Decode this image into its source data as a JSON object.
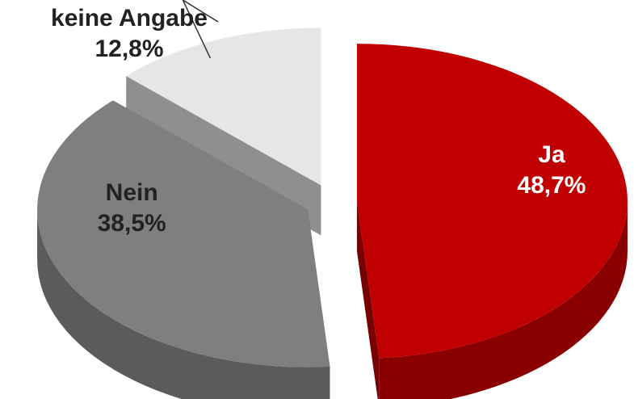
{
  "chart_data": {
    "type": "pie",
    "categories": [
      "Ja",
      "Nein",
      "keine Angabe"
    ],
    "values": [
      48.7,
      38.5,
      12.8
    ],
    "value_labels": [
      "48,7%",
      "38,5%",
      "12,8%"
    ],
    "colors": [
      "#c00000",
      "#7f7f7f",
      "#e6e6e6"
    ]
  }
}
